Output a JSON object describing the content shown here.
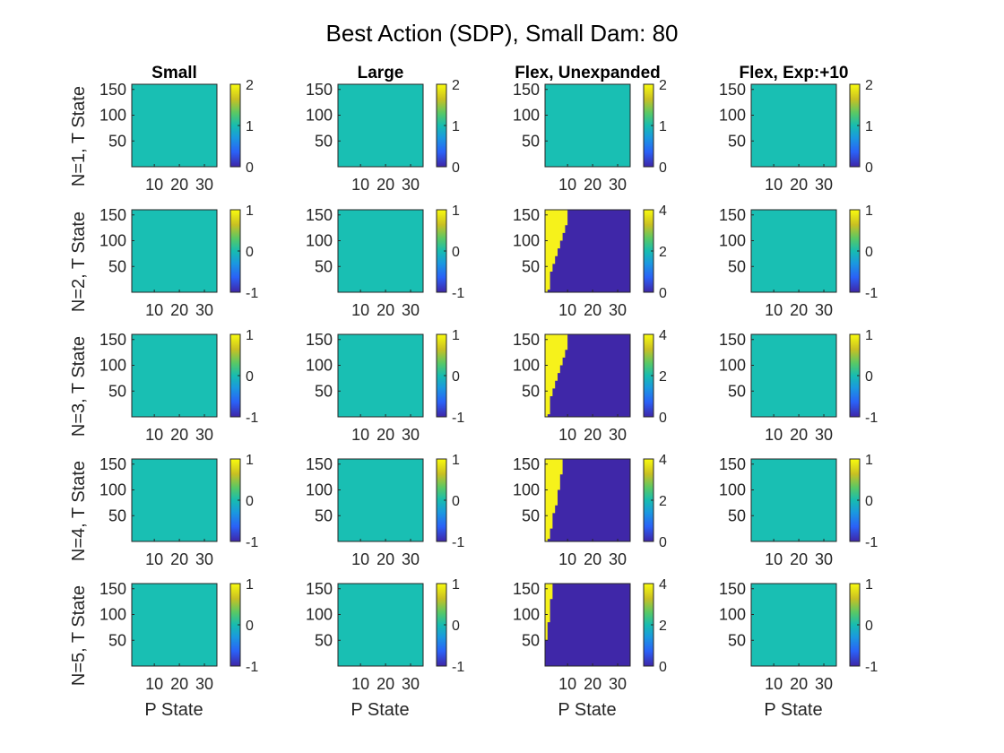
{
  "figure": {
    "title": "Best Action (SDP), Small Dam: 80",
    "colors": {
      "teal": "#19bfb3",
      "navy": "#3f27a8",
      "yellow": "#f6f21b",
      "background": "#ffffff",
      "frame": "#262626"
    },
    "colormap": "parula"
  },
  "chart_data": [
    {
      "type": "heatmap",
      "panel": "N1-Small",
      "row": 1,
      "col": 1,
      "title": "Small",
      "ylabel": "N=1, T State",
      "xlabel": "",
      "x_ticks": [
        "10",
        "20",
        "30"
      ],
      "y_ticks": [
        "150",
        "100",
        "50"
      ],
      "xlim": [
        1,
        35
      ],
      "ylim": [
        0,
        160
      ],
      "clim": [
        0,
        2
      ],
      "colorbar_ticks": [
        "2",
        "1",
        "0"
      ],
      "uniform_value": 1
    },
    {
      "type": "heatmap",
      "panel": "N1-Large",
      "row": 1,
      "col": 2,
      "title": "Large",
      "ylabel": "",
      "xlabel": "",
      "x_ticks": [
        "10",
        "20",
        "30"
      ],
      "y_ticks": [
        "150",
        "100",
        "50"
      ],
      "xlim": [
        1,
        35
      ],
      "ylim": [
        0,
        160
      ],
      "clim": [
        0,
        2
      ],
      "colorbar_ticks": [
        "2",
        "1",
        "0"
      ],
      "uniform_value": 1
    },
    {
      "type": "heatmap",
      "panel": "N1-FlexUnexp",
      "row": 1,
      "col": 3,
      "title": "Flex, Unexpanded",
      "ylabel": "",
      "xlabel": "",
      "x_ticks": [
        "10",
        "20",
        "30"
      ],
      "y_ticks": [
        "150",
        "100",
        "50"
      ],
      "xlim": [
        1,
        35
      ],
      "ylim": [
        0,
        160
      ],
      "clim": [
        0,
        2
      ],
      "colorbar_ticks": [
        "2",
        "1",
        "0"
      ],
      "uniform_value": 1
    },
    {
      "type": "heatmap",
      "panel": "N1-FlexExp",
      "row": 1,
      "col": 4,
      "title": "Flex, Exp:+10",
      "ylabel": "",
      "xlabel": "",
      "x_ticks": [
        "10",
        "20",
        "30"
      ],
      "y_ticks": [
        "150",
        "100",
        "50"
      ],
      "xlim": [
        1,
        35
      ],
      "ylim": [
        0,
        160
      ],
      "clim": [
        0,
        2
      ],
      "colorbar_ticks": [
        "2",
        "1",
        "0"
      ],
      "uniform_value": 1
    },
    {
      "type": "heatmap",
      "panel": "N2-Small",
      "row": 2,
      "col": 1,
      "title": "",
      "ylabel": "N=2, T State",
      "xlabel": "",
      "x_ticks": [
        "10",
        "20",
        "30"
      ],
      "y_ticks": [
        "150",
        "100",
        "50"
      ],
      "xlim": [
        1,
        35
      ],
      "ylim": [
        0,
        160
      ],
      "clim": [
        -1,
        1
      ],
      "colorbar_ticks": [
        "1",
        "0",
        "-1"
      ],
      "uniform_value": 0
    },
    {
      "type": "heatmap",
      "panel": "N2-Large",
      "row": 2,
      "col": 2,
      "title": "",
      "ylabel": "",
      "xlabel": "",
      "x_ticks": [
        "10",
        "20",
        "30"
      ],
      "y_ticks": [
        "150",
        "100",
        "50"
      ],
      "xlim": [
        1,
        35
      ],
      "ylim": [
        0,
        160
      ],
      "clim": [
        -1,
        1
      ],
      "colorbar_ticks": [
        "1",
        "0",
        "-1"
      ],
      "uniform_value": 0
    },
    {
      "type": "heatmap",
      "panel": "N2-FlexUnexp",
      "row": 2,
      "col": 3,
      "title": "",
      "ylabel": "",
      "xlabel": "",
      "x_ticks": [
        "10",
        "20",
        "30"
      ],
      "y_ticks": [
        "150",
        "100",
        "50"
      ],
      "xlim": [
        1,
        35
      ],
      "ylim": [
        0,
        160
      ],
      "clim": [
        0,
        4
      ],
      "colorbar_ticks": [
        "4",
        "2",
        "0"
      ],
      "low_value": 0,
      "high_value": 4,
      "boundary": [
        [
          2,
          0
        ],
        [
          2,
          5
        ],
        [
          3,
          5
        ],
        [
          3,
          40
        ],
        [
          4,
          40
        ],
        [
          4,
          55
        ],
        [
          5,
          55
        ],
        [
          5,
          70
        ],
        [
          6,
          70
        ],
        [
          6,
          85
        ],
        [
          7,
          85
        ],
        [
          7,
          100
        ],
        [
          8,
          100
        ],
        [
          8,
          115
        ],
        [
          9,
          115
        ],
        [
          9,
          130
        ],
        [
          10,
          130
        ],
        [
          10,
          160
        ]
      ]
    },
    {
      "type": "heatmap",
      "panel": "N2-FlexExp",
      "row": 2,
      "col": 4,
      "title": "",
      "ylabel": "",
      "xlabel": "",
      "x_ticks": [
        "10",
        "20",
        "30"
      ],
      "y_ticks": [
        "150",
        "100",
        "50"
      ],
      "xlim": [
        1,
        35
      ],
      "ylim": [
        0,
        160
      ],
      "clim": [
        -1,
        1
      ],
      "colorbar_ticks": [
        "1",
        "0",
        "-1"
      ],
      "uniform_value": 0
    },
    {
      "type": "heatmap",
      "panel": "N3-Small",
      "row": 3,
      "col": 1,
      "title": "",
      "ylabel": "N=3, T State",
      "xlabel": "",
      "x_ticks": [
        "10",
        "20",
        "30"
      ],
      "y_ticks": [
        "150",
        "100",
        "50"
      ],
      "xlim": [
        1,
        35
      ],
      "ylim": [
        0,
        160
      ],
      "clim": [
        -1,
        1
      ],
      "colorbar_ticks": [
        "1",
        "0",
        "-1"
      ],
      "uniform_value": 0
    },
    {
      "type": "heatmap",
      "panel": "N3-Large",
      "row": 3,
      "col": 2,
      "title": "",
      "ylabel": "",
      "xlabel": "",
      "x_ticks": [
        "10",
        "20",
        "30"
      ],
      "y_ticks": [
        "150",
        "100",
        "50"
      ],
      "xlim": [
        1,
        35
      ],
      "ylim": [
        0,
        160
      ],
      "clim": [
        -1,
        1
      ],
      "colorbar_ticks": [
        "1",
        "0",
        "-1"
      ],
      "uniform_value": 0
    },
    {
      "type": "heatmap",
      "panel": "N3-FlexUnexp",
      "row": 3,
      "col": 3,
      "title": "",
      "ylabel": "",
      "xlabel": "",
      "x_ticks": [
        "10",
        "20",
        "30"
      ],
      "y_ticks": [
        "150",
        "100",
        "50"
      ],
      "xlim": [
        1,
        35
      ],
      "ylim": [
        0,
        160
      ],
      "clim": [
        0,
        4
      ],
      "colorbar_ticks": [
        "4",
        "2",
        "0"
      ],
      "low_value": 0,
      "high_value": 4,
      "boundary": [
        [
          2,
          0
        ],
        [
          2,
          5
        ],
        [
          3,
          5
        ],
        [
          3,
          40
        ],
        [
          4,
          40
        ],
        [
          4,
          55
        ],
        [
          5,
          55
        ],
        [
          5,
          70
        ],
        [
          6,
          70
        ],
        [
          6,
          85
        ],
        [
          7,
          85
        ],
        [
          7,
          100
        ],
        [
          8,
          100
        ],
        [
          8,
          115
        ],
        [
          9,
          115
        ],
        [
          9,
          130
        ],
        [
          10,
          130
        ],
        [
          10,
          160
        ]
      ]
    },
    {
      "type": "heatmap",
      "panel": "N3-FlexExp",
      "row": 3,
      "col": 4,
      "title": "",
      "ylabel": "",
      "xlabel": "",
      "x_ticks": [
        "10",
        "20",
        "30"
      ],
      "y_ticks": [
        "150",
        "100",
        "50"
      ],
      "xlim": [
        1,
        35
      ],
      "ylim": [
        0,
        160
      ],
      "clim": [
        -1,
        1
      ],
      "colorbar_ticks": [
        "1",
        "0",
        "-1"
      ],
      "uniform_value": 0
    },
    {
      "type": "heatmap",
      "panel": "N4-Small",
      "row": 4,
      "col": 1,
      "title": "",
      "ylabel": "N=4, T State",
      "xlabel": "",
      "x_ticks": [
        "10",
        "20",
        "30"
      ],
      "y_ticks": [
        "150",
        "100",
        "50"
      ],
      "xlim": [
        1,
        35
      ],
      "ylim": [
        0,
        160
      ],
      "clim": [
        -1,
        1
      ],
      "colorbar_ticks": [
        "1",
        "0",
        "-1"
      ],
      "uniform_value": 0
    },
    {
      "type": "heatmap",
      "panel": "N4-Large",
      "row": 4,
      "col": 2,
      "title": "",
      "ylabel": "",
      "xlabel": "",
      "x_ticks": [
        "10",
        "20",
        "30"
      ],
      "y_ticks": [
        "150",
        "100",
        "50"
      ],
      "xlim": [
        1,
        35
      ],
      "ylim": [
        0,
        160
      ],
      "clim": [
        -1,
        1
      ],
      "colorbar_ticks": [
        "1",
        "0",
        "-1"
      ],
      "uniform_value": 0
    },
    {
      "type": "heatmap",
      "panel": "N4-FlexUnexp",
      "row": 4,
      "col": 3,
      "title": "",
      "ylabel": "",
      "xlabel": "",
      "x_ticks": [
        "10",
        "20",
        "30"
      ],
      "y_ticks": [
        "150",
        "100",
        "50"
      ],
      "xlim": [
        1,
        35
      ],
      "ylim": [
        0,
        160
      ],
      "clim": [
        0,
        4
      ],
      "colorbar_ticks": [
        "4",
        "2",
        "0"
      ],
      "low_value": 0,
      "high_value": 4,
      "boundary": [
        [
          2,
          0
        ],
        [
          2,
          5
        ],
        [
          3,
          5
        ],
        [
          3,
          25
        ],
        [
          4,
          25
        ],
        [
          4,
          55
        ],
        [
          5,
          55
        ],
        [
          5,
          70
        ],
        [
          6,
          70
        ],
        [
          6,
          100
        ],
        [
          7,
          100
        ],
        [
          7,
          130
        ],
        [
          8,
          130
        ],
        [
          8,
          160
        ]
      ]
    },
    {
      "type": "heatmap",
      "panel": "N4-FlexExp",
      "row": 4,
      "col": 4,
      "title": "",
      "ylabel": "",
      "xlabel": "",
      "x_ticks": [
        "10",
        "20",
        "30"
      ],
      "y_ticks": [
        "150",
        "100",
        "50"
      ],
      "xlim": [
        1,
        35
      ],
      "ylim": [
        0,
        160
      ],
      "clim": [
        -1,
        1
      ],
      "colorbar_ticks": [
        "1",
        "0",
        "-1"
      ],
      "uniform_value": 0
    },
    {
      "type": "heatmap",
      "panel": "N5-Small",
      "row": 5,
      "col": 1,
      "title": "",
      "ylabel": "N=5, T State",
      "xlabel": "P State",
      "x_ticks": [
        "10",
        "20",
        "30"
      ],
      "y_ticks": [
        "150",
        "100",
        "50"
      ],
      "xlim": [
        1,
        35
      ],
      "ylim": [
        0,
        160
      ],
      "clim": [
        -1,
        1
      ],
      "colorbar_ticks": [
        "1",
        "0",
        "-1"
      ],
      "uniform_value": 0
    },
    {
      "type": "heatmap",
      "panel": "N5-Large",
      "row": 5,
      "col": 2,
      "title": "",
      "ylabel": "",
      "xlabel": "P State",
      "x_ticks": [
        "10",
        "20",
        "30"
      ],
      "y_ticks": [
        "150",
        "100",
        "50"
      ],
      "xlim": [
        1,
        35
      ],
      "ylim": [
        0,
        160
      ],
      "clim": [
        -1,
        1
      ],
      "colorbar_ticks": [
        "1",
        "0",
        "-1"
      ],
      "uniform_value": 0
    },
    {
      "type": "heatmap",
      "panel": "N5-FlexUnexp",
      "row": 5,
      "col": 3,
      "title": "",
      "ylabel": "",
      "xlabel": "P State",
      "x_ticks": [
        "10",
        "20",
        "30"
      ],
      "y_ticks": [
        "150",
        "100",
        "50"
      ],
      "xlim": [
        1,
        35
      ],
      "ylim": [
        0,
        160
      ],
      "clim": [
        0,
        4
      ],
      "colorbar_ticks": [
        "4",
        "2",
        "0"
      ],
      "low_value": 0,
      "high_value": 4,
      "boundary": [
        [
          1,
          0
        ],
        [
          1,
          50
        ],
        [
          2,
          50
        ],
        [
          2,
          85
        ],
        [
          3,
          85
        ],
        [
          3,
          130
        ],
        [
          4,
          130
        ],
        [
          4,
          160
        ]
      ]
    },
    {
      "type": "heatmap",
      "panel": "N5-FlexExp",
      "row": 5,
      "col": 4,
      "title": "",
      "ylabel": "",
      "xlabel": "P State",
      "x_ticks": [
        "10",
        "20",
        "30"
      ],
      "y_ticks": [
        "150",
        "100",
        "50"
      ],
      "xlim": [
        1,
        35
      ],
      "ylim": [
        0,
        160
      ],
      "clim": [
        -1,
        1
      ],
      "colorbar_ticks": [
        "1",
        "0",
        "-1"
      ],
      "uniform_value": 0
    }
  ]
}
